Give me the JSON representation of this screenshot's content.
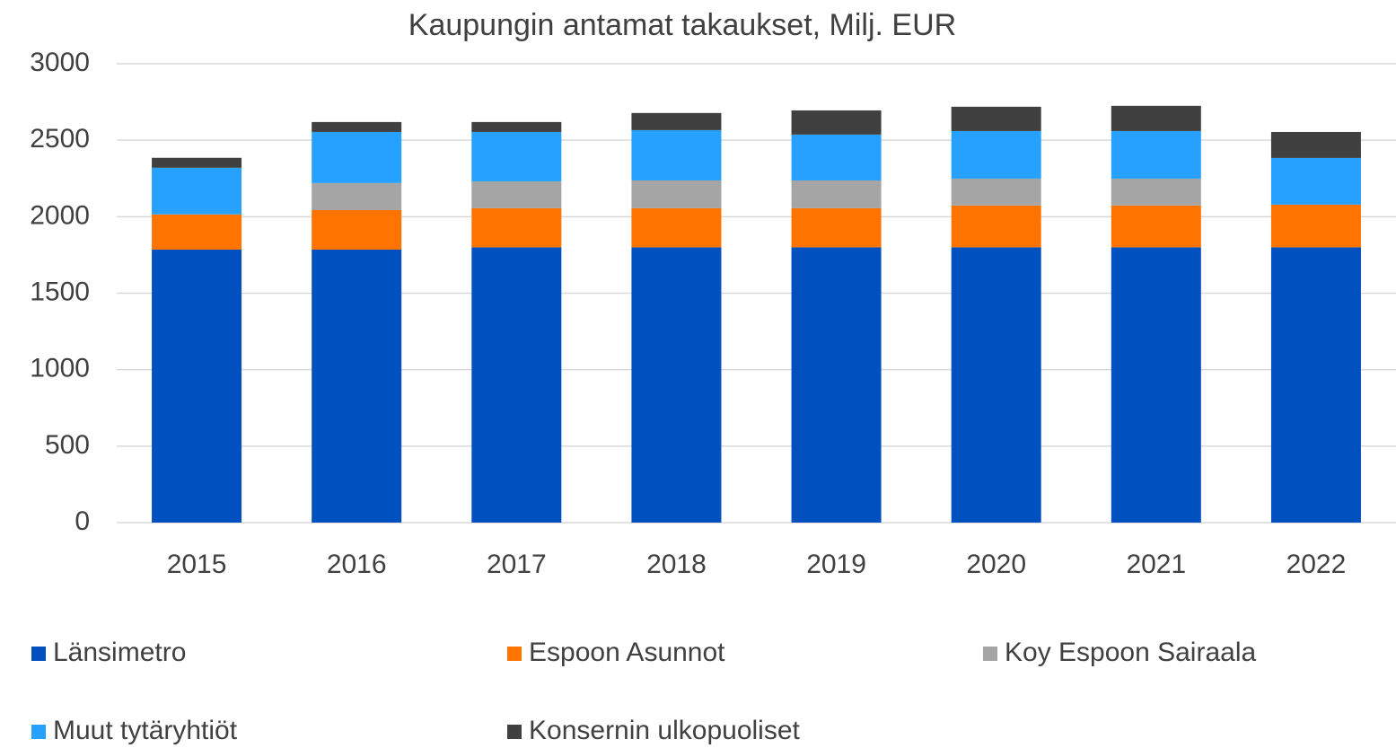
{
  "chart_data": {
    "type": "stacked_bar",
    "title": "Kaupungin antamat takaukset, Milj. EUR",
    "categories": [
      "2015",
      "2016",
      "2017",
      "2018",
      "2019",
      "2020",
      "2021",
      "2022"
    ],
    "series": [
      {
        "name": "Länsimetro",
        "color": "#0050bf",
        "values": [
          1785,
          1785,
          1800,
          1800,
          1800,
          1800,
          1800,
          1800
        ]
      },
      {
        "name": "Espoon Asunnot",
        "color": "#ff7300",
        "values": [
          230,
          258,
          255,
          255,
          255,
          273,
          273,
          279
        ]
      },
      {
        "name": "Koy Espoon Sairaala",
        "color": "#a5a5a5",
        "values": [
          0,
          177,
          176,
          182,
          182,
          176,
          176,
          0
        ]
      },
      {
        "name": "Muut tytäryhtiöt",
        "color": "#27a1ff",
        "values": [
          305,
          334,
          323,
          329,
          300,
          311,
          311,
          305
        ]
      },
      {
        "name": "Konsernin ulkopuoliset",
        "color": "#404040",
        "values": [
          65,
          65,
          65,
          112,
          158,
          159,
          165,
          170
        ]
      }
    ],
    "ylim": [
      0,
      3000
    ],
    "yticks": [
      0,
      500,
      1000,
      1500,
      2000,
      2500,
      3000
    ],
    "grid": true
  }
}
